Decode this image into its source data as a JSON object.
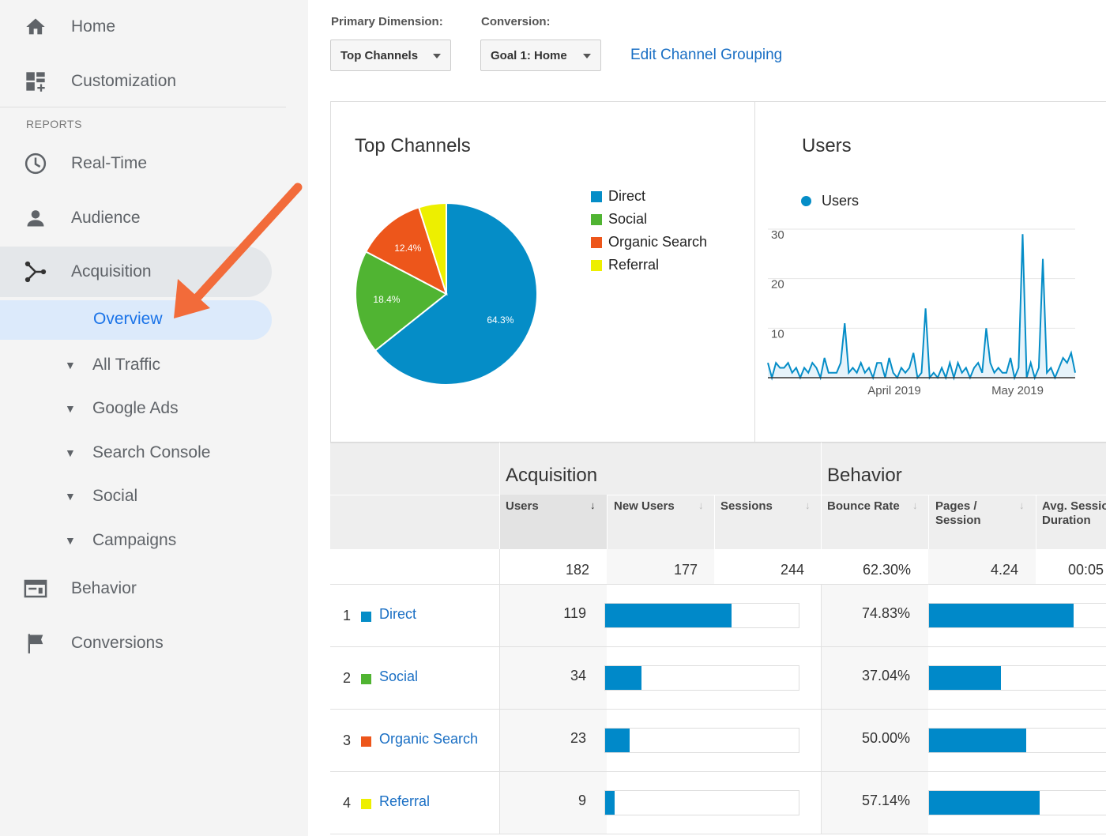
{
  "sidebar": {
    "items": [
      {
        "label": "Home",
        "icon": "home-icon"
      },
      {
        "label": "Customization",
        "icon": "dashboard-icon"
      },
      {
        "label": "Real-Time",
        "icon": "clock-icon"
      },
      {
        "label": "Audience",
        "icon": "person-icon"
      },
      {
        "label": "Acquisition",
        "icon": "acquisition-icon"
      },
      {
        "label": "Behavior",
        "icon": "behavior-icon"
      },
      {
        "label": "Conversions",
        "icon": "flag-icon"
      }
    ],
    "reports_heading": "REPORTS",
    "overview_label": "Overview",
    "sub_items": [
      "All Traffic",
      "Google Ads",
      "Search Console",
      "Social",
      "Campaigns"
    ],
    "annotation_color": "#f26b3a"
  },
  "controls": {
    "primary_dimension_label": "Primary Dimension:",
    "primary_dimension_value": "Top Channels",
    "conversion_label": "Conversion:",
    "conversion_value": "Goal 1: Home",
    "edit_link": "Edit Channel Grouping"
  },
  "top_channels": {
    "title": "Top Channels",
    "legend": [
      {
        "label": "Direct",
        "color": "#058dc7"
      },
      {
        "label": "Social",
        "color": "#50b432"
      },
      {
        "label": "Organic Search",
        "color": "#ed561b"
      },
      {
        "label": "Referral",
        "color": "#edef00"
      }
    ]
  },
  "users_chart": {
    "title": "Users",
    "legend_label": "Users",
    "color": "#058dc7"
  },
  "chart_data": [
    {
      "type": "pie",
      "title": "Top Channels",
      "categories": [
        "Direct",
        "Social",
        "Organic Search",
        "Referral"
      ],
      "values": [
        64.3,
        18.4,
        12.4,
        4.9
      ],
      "labels": [
        "64.3%",
        "18.4%",
        "12.4%",
        ""
      ],
      "colors": [
        "#058dc7",
        "#50b432",
        "#ed561b",
        "#edef00"
      ]
    },
    {
      "type": "line",
      "title": "Users",
      "series": [
        {
          "name": "Users",
          "values": [
            3,
            0,
            3,
            2,
            2,
            3,
            1,
            2,
            0,
            2,
            1,
            3,
            2,
            0,
            4,
            1,
            1,
            1,
            3,
            11,
            1,
            2,
            1,
            3,
            1,
            2,
            0,
            3,
            3,
            0,
            4,
            1,
            0,
            2,
            1,
            2,
            5,
            0,
            1,
            14,
            0,
            1,
            0,
            2,
            0,
            3,
            0,
            3,
            1,
            2,
            0,
            2,
            3,
            1,
            10,
            3,
            1,
            2,
            1,
            1,
            4,
            0,
            2,
            29,
            0,
            3,
            0,
            2,
            24,
            1,
            2,
            0,
            2,
            4,
            3,
            5,
            1
          ]
        }
      ],
      "x_ticks": [
        "April 2019",
        "May 2019"
      ],
      "y_ticks": [
        10,
        20,
        30
      ],
      "ylim": [
        0,
        30
      ]
    }
  ],
  "table": {
    "group_headers": [
      "Acquisition",
      "Behavior"
    ],
    "columns": [
      {
        "label": "Users",
        "arrow": "↓"
      },
      {
        "label": "New Users",
        "arrow": "↓"
      },
      {
        "label": "Sessions",
        "arrow": "↓"
      },
      {
        "label": "Bounce Rate",
        "arrow": "↓"
      },
      {
        "label": "Pages / Session",
        "arrow": "↓"
      },
      {
        "label": "Avg. Session Duration",
        "arrow": ""
      }
    ],
    "totals": [
      "182",
      "177",
      "244",
      "62.30%",
      "4.24",
      "00:05"
    ],
    "rows": [
      {
        "index": "1",
        "channel": "Direct",
        "color": "#058dc7",
        "users": "119",
        "users_fraction": 0.654,
        "bounce_rate": "74.83%",
        "bounce_fraction": 0.7483
      },
      {
        "index": "2",
        "channel": "Social",
        "color": "#50b432",
        "users": "34",
        "users_fraction": 0.187,
        "bounce_rate": "37.04%",
        "bounce_fraction": 0.3704
      },
      {
        "index": "3",
        "channel": "Organic Search",
        "color": "#ed561b",
        "users": "23",
        "users_fraction": 0.126,
        "bounce_rate": "50.00%",
        "bounce_fraction": 0.5
      },
      {
        "index": "4",
        "channel": "Referral",
        "color": "#edef00",
        "users": "9",
        "users_fraction": 0.049,
        "bounce_rate": "57.14%",
        "bounce_fraction": 0.5714
      }
    ]
  }
}
